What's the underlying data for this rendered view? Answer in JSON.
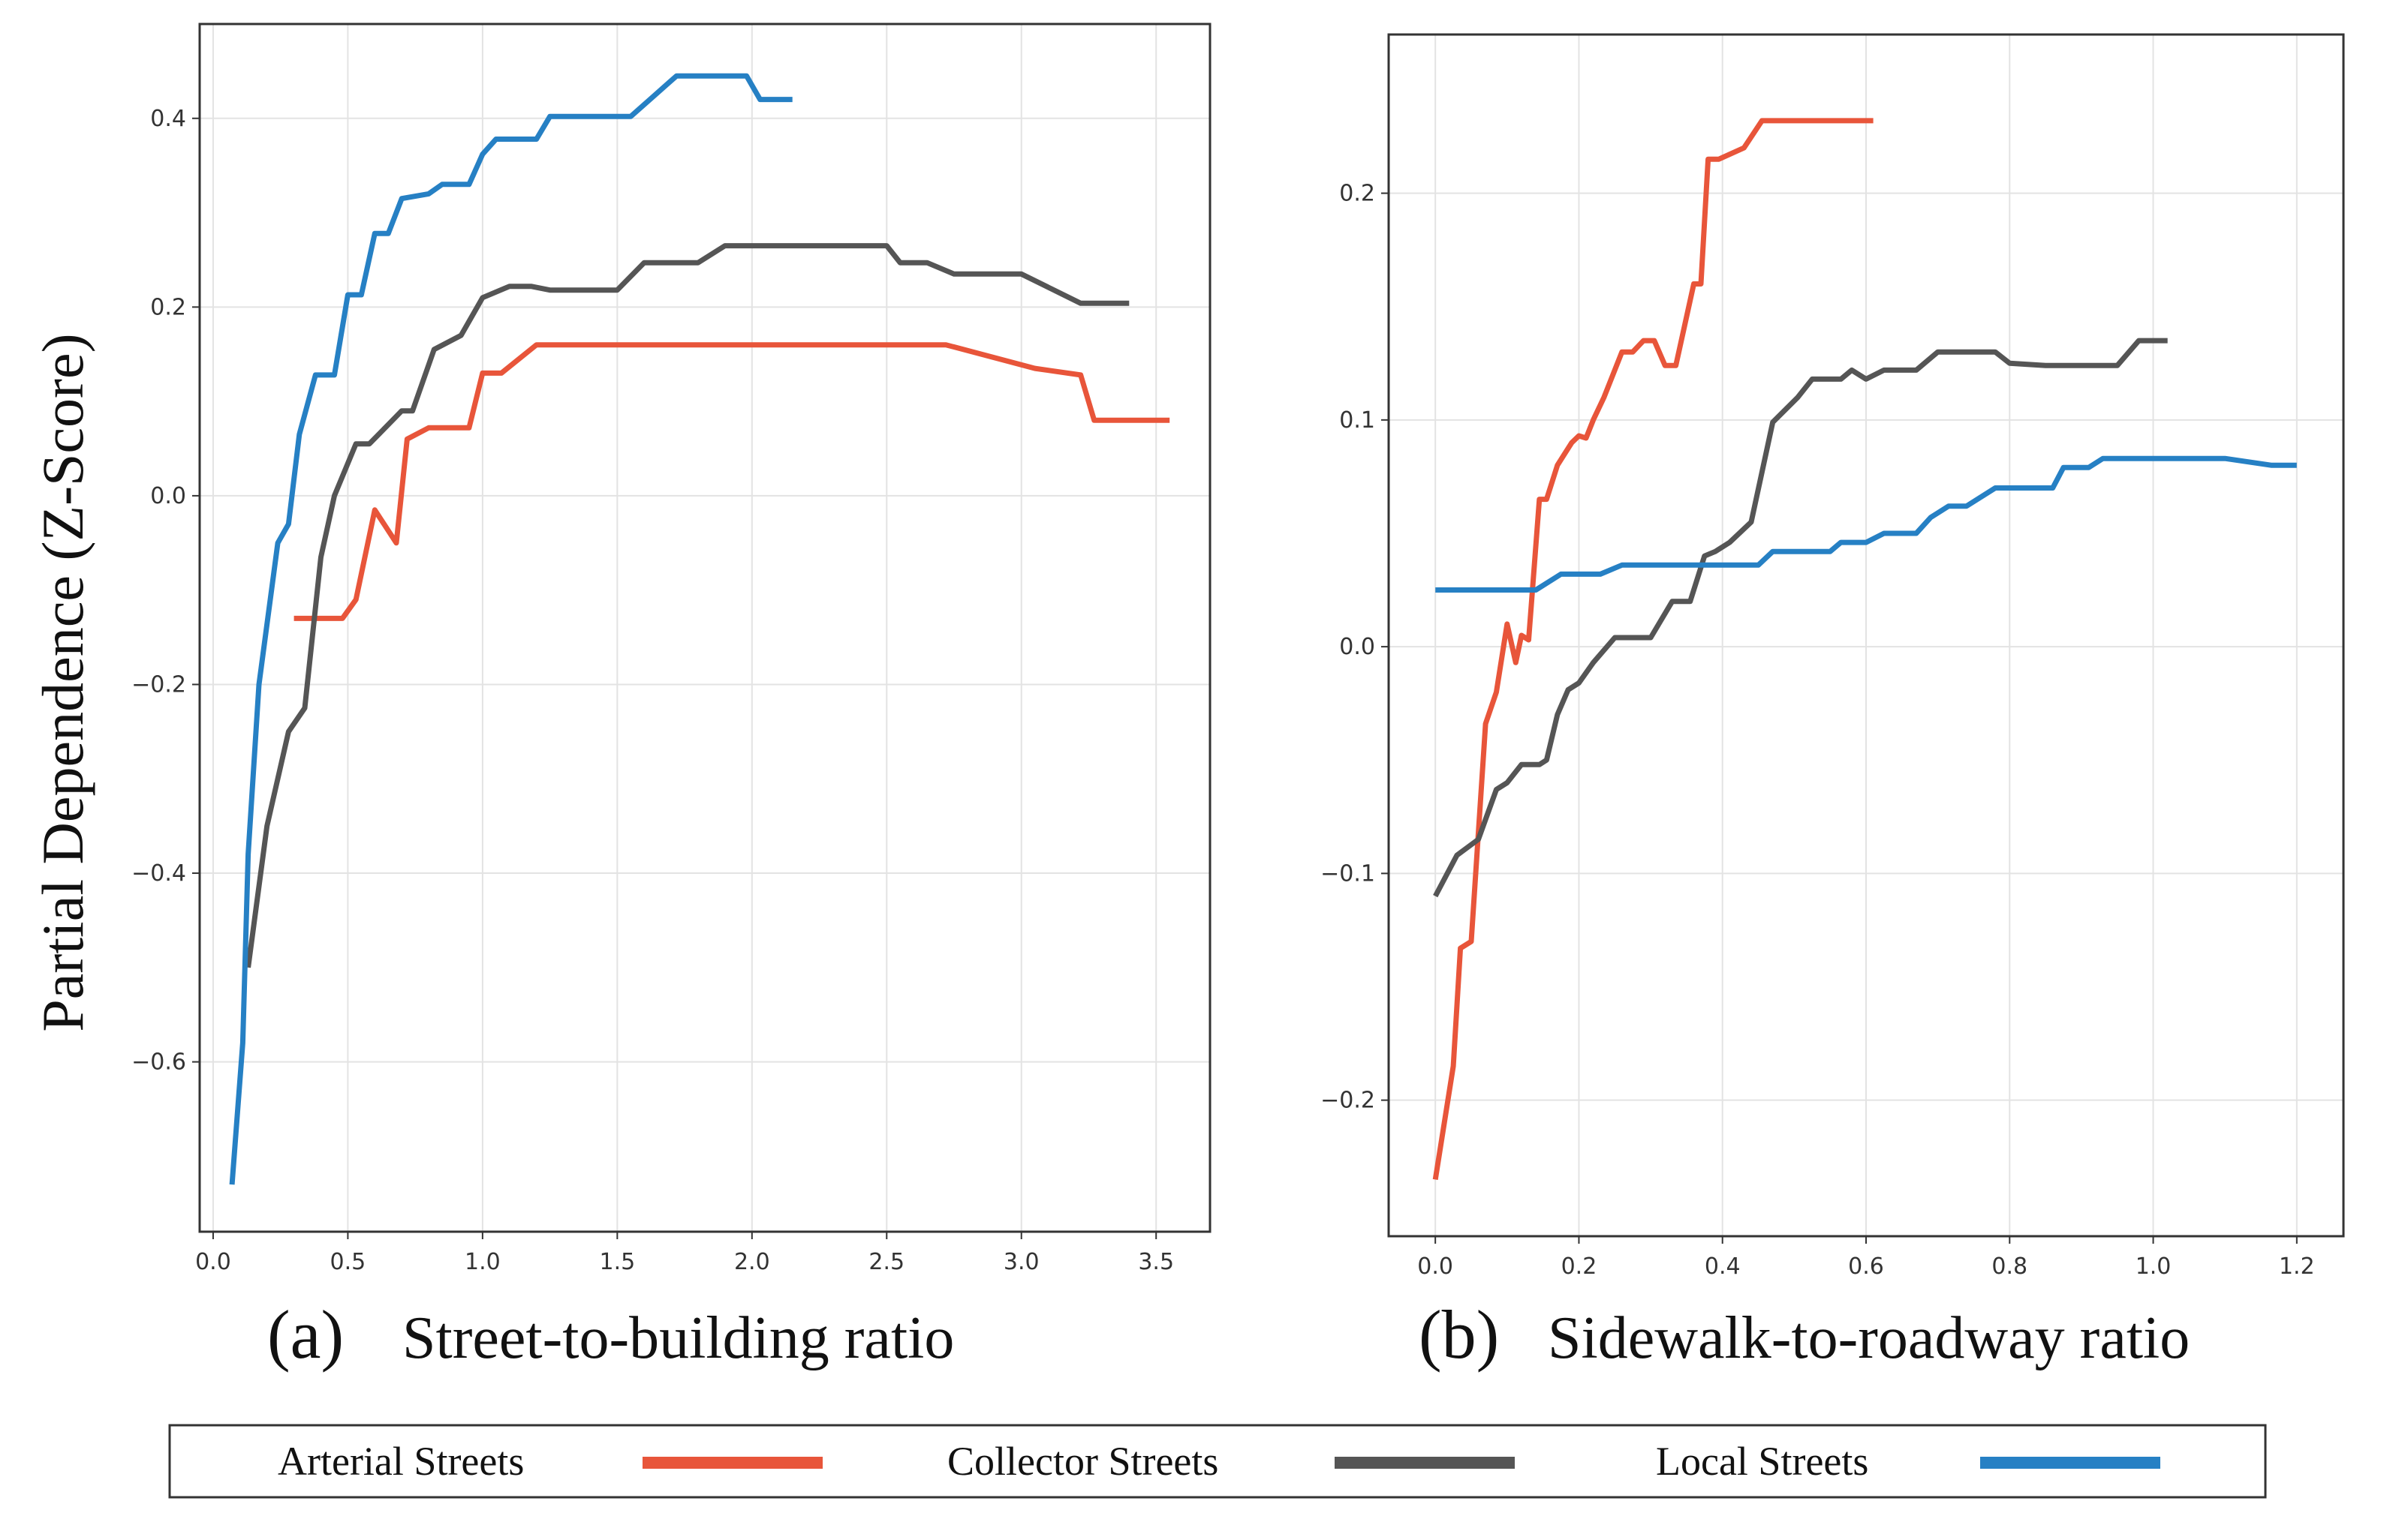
{
  "figure": {
    "ylabel": "Partial Dependence (Z-Score)",
    "legend": {
      "placement": "bottom",
      "entries": [
        {
          "label": "Arterial Streets",
          "color": "#e8553a"
        },
        {
          "label": "Collector Streets",
          "color": "#555555"
        },
        {
          "label": "Local Streets",
          "color": "#2680c4"
        }
      ]
    }
  },
  "chart_data": [
    {
      "type": "line",
      "panel_label": "(a)",
      "xlabel": "Street-to-building ratio",
      "ylabel": "Partial Dependence (Z-Score)",
      "xlim": [
        -0.05,
        3.7
      ],
      "ylim": [
        -0.78,
        0.5
      ],
      "xticks": [
        0.0,
        0.5,
        1.0,
        1.5,
        2.0,
        2.5,
        3.0,
        3.5
      ],
      "yticks": [
        -0.6,
        -0.4,
        -0.2,
        0.0,
        0.2,
        0.4
      ],
      "xtick_labels": [
        "0.0",
        "0.5",
        "1.0",
        "1.5",
        "2.0",
        "2.5",
        "3.0",
        "3.5"
      ],
      "ytick_labels": [
        "−0.6",
        "−0.4",
        "−0.2",
        "0.0",
        "0.2",
        "0.4"
      ],
      "grid": true,
      "series": [
        {
          "name": "Arterial Streets",
          "color": "#e8553a",
          "x": [
            0.3,
            0.48,
            0.53,
            0.6,
            0.68,
            0.72,
            0.8,
            0.95,
            1.0,
            1.07,
            1.2,
            1.5,
            2.0,
            2.5,
            2.72,
            3.05,
            3.22,
            3.27,
            3.55
          ],
          "y": [
            -0.13,
            -0.13,
            -0.11,
            -0.015,
            -0.05,
            0.06,
            0.072,
            0.072,
            0.13,
            0.13,
            0.16,
            0.16,
            0.16,
            0.16,
            0.16,
            0.135,
            0.128,
            0.08,
            0.08
          ]
        },
        {
          "name": "Collector Streets",
          "color": "#555555",
          "x": [
            0.13,
            0.2,
            0.28,
            0.34,
            0.4,
            0.45,
            0.53,
            0.58,
            0.7,
            0.74,
            0.82,
            0.92,
            1.0,
            1.1,
            1.18,
            1.25,
            1.5,
            1.6,
            1.8,
            1.9,
            2.5,
            2.55,
            2.65,
            2.75,
            3.0,
            3.22,
            3.4
          ],
          "y": [
            -0.5,
            -0.35,
            -0.25,
            -0.225,
            -0.065,
            0.0,
            0.055,
            0.055,
            0.09,
            0.09,
            0.155,
            0.17,
            0.21,
            0.222,
            0.222,
            0.218,
            0.218,
            0.247,
            0.247,
            0.265,
            0.265,
            0.247,
            0.247,
            0.235,
            0.235,
            0.204,
            0.204
          ]
        },
        {
          "name": "Local Streets",
          "color": "#2680c4",
          "x": [
            0.07,
            0.11,
            0.13,
            0.17,
            0.24,
            0.28,
            0.32,
            0.38,
            0.45,
            0.5,
            0.55,
            0.6,
            0.65,
            0.7,
            0.8,
            0.85,
            0.95,
            1.0,
            1.05,
            1.2,
            1.25,
            1.55,
            1.72,
            1.98,
            2.03,
            2.15
          ],
          "y": [
            -0.73,
            -0.58,
            -0.38,
            -0.2,
            -0.05,
            -0.03,
            0.065,
            0.128,
            0.128,
            0.213,
            0.213,
            0.278,
            0.278,
            0.315,
            0.32,
            0.33,
            0.33,
            0.362,
            0.378,
            0.378,
            0.402,
            0.402,
            0.445,
            0.445,
            0.42,
            0.42
          ]
        }
      ]
    },
    {
      "type": "line",
      "panel_label": "(b)",
      "xlabel": "Sidewalk-to-roadway ratio",
      "ylabel": "",
      "xlim": [
        -0.065,
        1.265
      ],
      "ylim": [
        -0.26,
        0.27
      ],
      "xticks": [
        0.0,
        0.2,
        0.4,
        0.6,
        0.8,
        1.0,
        1.2
      ],
      "yticks": [
        -0.2,
        -0.1,
        0.0,
        0.1,
        0.2
      ],
      "xtick_labels": [
        "0.0",
        "0.2",
        "0.4",
        "0.6",
        "0.8",
        "1.0",
        "1.2"
      ],
      "ytick_labels": [
        "−0.2",
        "−0.1",
        "0.0",
        "0.1",
        "0.2"
      ],
      "grid": true,
      "series": [
        {
          "name": "Arterial Streets",
          "color": "#e8553a",
          "x": [
            0.0,
            0.025,
            0.035,
            0.05,
            0.07,
            0.085,
            0.1,
            0.112,
            0.12,
            0.13,
            0.145,
            0.155,
            0.17,
            0.18,
            0.19,
            0.2,
            0.21,
            0.22,
            0.235,
            0.26,
            0.275,
            0.29,
            0.305,
            0.32,
            0.335,
            0.36,
            0.37,
            0.38,
            0.395,
            0.43,
            0.455,
            0.61
          ],
          "y": [
            -0.235,
            -0.185,
            -0.133,
            -0.13,
            -0.034,
            -0.02,
            0.01,
            -0.007,
            0.005,
            0.003,
            0.065,
            0.065,
            0.08,
            0.085,
            0.09,
            0.093,
            0.092,
            0.1,
            0.11,
            0.13,
            0.13,
            0.135,
            0.135,
            0.124,
            0.124,
            0.16,
            0.16,
            0.215,
            0.215,
            0.22,
            0.232,
            0.232
          ]
        },
        {
          "name": "Collector Streets",
          "color": "#555555",
          "x": [
            0.0,
            0.03,
            0.06,
            0.085,
            0.1,
            0.12,
            0.145,
            0.155,
            0.17,
            0.185,
            0.2,
            0.22,
            0.25,
            0.3,
            0.33,
            0.355,
            0.375,
            0.39,
            0.41,
            0.44,
            0.47,
            0.505,
            0.525,
            0.565,
            0.58,
            0.6,
            0.625,
            0.67,
            0.7,
            0.72,
            0.78,
            0.8,
            0.85,
            0.95,
            0.98,
            1.02
          ],
          "y": [
            -0.11,
            -0.092,
            -0.085,
            -0.063,
            -0.06,
            -0.052,
            -0.052,
            -0.05,
            -0.03,
            -0.019,
            -0.016,
            -0.007,
            0.004,
            0.004,
            0.02,
            0.02,
            0.04,
            0.042,
            0.046,
            0.055,
            0.099,
            0.11,
            0.118,
            0.118,
            0.122,
            0.118,
            0.122,
            0.122,
            0.13,
            0.13,
            0.13,
            0.125,
            0.124,
            0.124,
            0.135,
            0.135
          ]
        },
        {
          "name": "Local Streets",
          "color": "#2680c4",
          "x": [
            0.0,
            0.14,
            0.175,
            0.23,
            0.26,
            0.45,
            0.47,
            0.55,
            0.565,
            0.6,
            0.625,
            0.67,
            0.69,
            0.715,
            0.74,
            0.78,
            0.86,
            0.875,
            0.91,
            0.93,
            1.0,
            1.1,
            1.165,
            1.2
          ],
          "y": [
            0.025,
            0.025,
            0.032,
            0.032,
            0.036,
            0.036,
            0.042,
            0.042,
            0.046,
            0.046,
            0.05,
            0.05,
            0.057,
            0.062,
            0.062,
            0.07,
            0.07,
            0.079,
            0.079,
            0.083,
            0.083,
            0.083,
            0.08,
            0.08
          ]
        }
      ]
    }
  ]
}
